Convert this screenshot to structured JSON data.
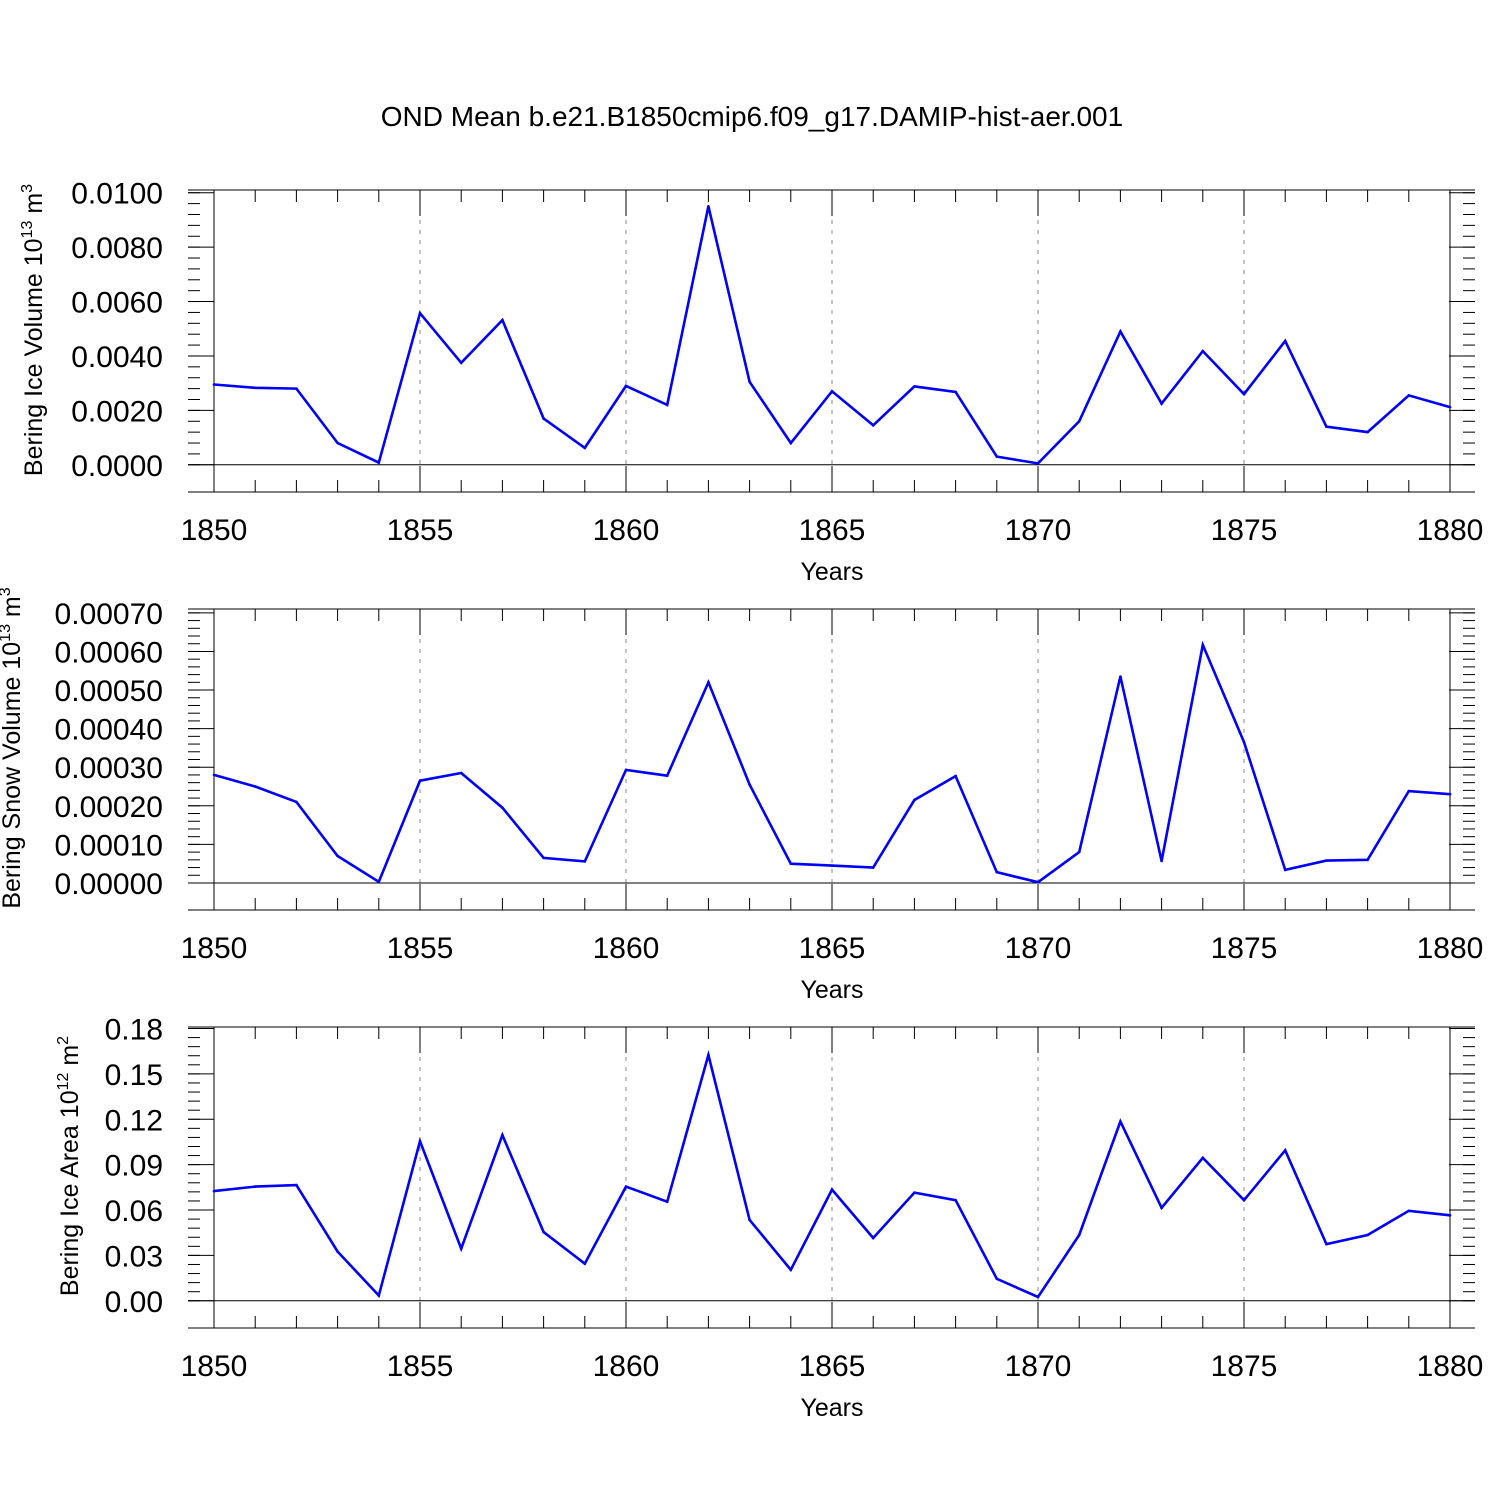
{
  "figure": {
    "title": "OND Mean b.e21.B1850cmip6.f09_g17.DAMIP-hist-aer.001"
  },
  "colors": {
    "line": "#0000ff",
    "axis": "#000000",
    "grid": "#888888"
  },
  "chart_data": [
    {
      "type": "line",
      "name": "ice-volume",
      "ylabel": "Bering Ice Volume 10",
      "ylabel_exp": "13",
      "ylabel_unit": " m",
      "ylabel_unit_exp": "3",
      "xlabel": "Years",
      "xlim": [
        1850,
        1880
      ],
      "ylim": [
        -0.001,
        0.0101
      ],
      "x_ticks": [
        1850,
        1855,
        1860,
        1865,
        1870,
        1875,
        1880
      ],
      "y_ticks": [
        "0.0000",
        "0.0020",
        "0.0040",
        "0.0060",
        "0.0080",
        "0.0100"
      ],
      "y_tick_values": [
        0,
        0.002,
        0.004,
        0.006,
        0.008,
        0.01
      ],
      "y_minor_step": 0.0004,
      "x": [
        1850,
        1851,
        1852,
        1853,
        1854,
        1855,
        1856,
        1857,
        1858,
        1859,
        1860,
        1861,
        1862,
        1863,
        1864,
        1865,
        1866,
        1867,
        1868,
        1869,
        1870,
        1871,
        1872,
        1873,
        1874,
        1875,
        1876,
        1877,
        1878,
        1879,
        1880
      ],
      "series": [
        {
          "name": "OND Mean",
          "values": [
            0.00295,
            0.00283,
            0.0028,
            0.0008,
            8e-05,
            0.00557,
            0.00375,
            0.00532,
            0.0017,
            0.00062,
            0.0029,
            0.0022,
            0.0095,
            0.00305,
            0.0008,
            0.0027,
            0.00145,
            0.00288,
            0.00268,
            0.0003,
            5e-05,
            0.0016,
            0.0049,
            0.00225,
            0.00418,
            0.0026,
            0.00455,
            0.0014,
            0.0012,
            0.00255,
            0.00212
          ]
        }
      ]
    },
    {
      "type": "line",
      "name": "snow-volume",
      "ylabel": "Bering Snow Volume 10",
      "ylabel_exp": "13",
      "ylabel_unit": " m",
      "ylabel_unit_exp": "3",
      "xlabel": "Years",
      "xlim": [
        1850,
        1880
      ],
      "ylim": [
        -7e-05,
        0.00071
      ],
      "x_ticks": [
        1850,
        1855,
        1860,
        1865,
        1870,
        1875,
        1880
      ],
      "y_ticks": [
        "0.00000",
        "0.00010",
        "0.00020",
        "0.00030",
        "0.00040",
        "0.00050",
        "0.00060",
        "0.00070"
      ],
      "y_tick_values": [
        0,
        0.0001,
        0.0002,
        0.0003,
        0.0004,
        0.0005,
        0.0006,
        0.0007
      ],
      "y_minor_step": 2e-05,
      "x": [
        1850,
        1851,
        1852,
        1853,
        1854,
        1855,
        1856,
        1857,
        1858,
        1859,
        1860,
        1861,
        1862,
        1863,
        1864,
        1865,
        1866,
        1867,
        1868,
        1869,
        1870,
        1871,
        1872,
        1873,
        1874,
        1875,
        1876,
        1877,
        1878,
        1879,
        1880
      ],
      "series": [
        {
          "name": "OND Mean",
          "values": [
            0.00028,
            0.00025,
            0.00021,
            7e-05,
            3e-06,
            0.000265,
            0.000285,
            0.000195,
            6.5e-05,
            5.6e-05,
            0.000293,
            0.000278,
            0.00052,
            0.000255,
            5e-05,
            4.5e-05,
            4e-05,
            0.000215,
            0.000277,
            2.8e-05,
            2e-06,
            8e-05,
            0.000535,
            5.7e-05,
            0.000617,
            0.000365,
            3.4e-05,
            5.8e-05,
            6e-05,
            0.000238,
            0.00023
          ]
        }
      ]
    },
    {
      "type": "line",
      "name": "ice-area",
      "ylabel": "Bering Ice Area 10",
      "ylabel_exp": "12",
      "ylabel_unit": " m",
      "ylabel_unit_exp": "2",
      "xlabel": "Years",
      "xlim": [
        1850,
        1880
      ],
      "ylim": [
        -0.018,
        0.181
      ],
      "x_ticks": [
        1850,
        1855,
        1860,
        1865,
        1870,
        1875,
        1880
      ],
      "y_ticks": [
        "0.00",
        "0.03",
        "0.06",
        "0.09",
        "0.12",
        "0.15",
        "0.18"
      ],
      "y_tick_values": [
        0,
        0.03,
        0.06,
        0.09,
        0.12,
        0.15,
        0.18
      ],
      "y_minor_step": 0.006,
      "x": [
        1850,
        1851,
        1852,
        1853,
        1854,
        1855,
        1856,
        1857,
        1858,
        1859,
        1860,
        1861,
        1862,
        1863,
        1864,
        1865,
        1866,
        1867,
        1868,
        1869,
        1870,
        1871,
        1872,
        1873,
        1874,
        1875,
        1876,
        1877,
        1878,
        1879,
        1880
      ],
      "series": [
        {
          "name": "OND Mean",
          "values": [
            0.0725,
            0.0755,
            0.0765,
            0.0325,
            0.0035,
            0.1055,
            0.0345,
            0.1095,
            0.0455,
            0.0245,
            0.0755,
            0.0655,
            0.1625,
            0.0535,
            0.0205,
            0.0735,
            0.0415,
            0.0715,
            0.0665,
            0.0145,
            0.0025,
            0.0435,
            0.1185,
            0.0615,
            0.0945,
            0.0665,
            0.0995,
            0.0375,
            0.0435,
            0.0595,
            0.0565
          ]
        }
      ]
    }
  ]
}
